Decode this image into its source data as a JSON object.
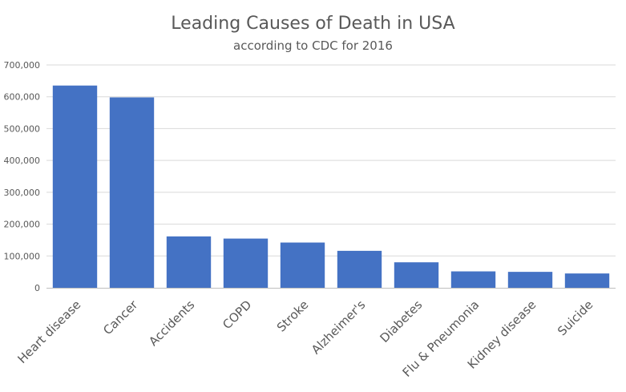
{
  "chart_data": {
    "type": "bar",
    "title": "Leading Causes of Death in USA",
    "subtitle": "according to CDC for 2016",
    "categories": [
      "Heart disease",
      "Cancer",
      "Accidents",
      "COPD",
      "Stroke",
      "Alzheimer's",
      "Diabetes",
      "Flu & Pneumonia",
      "Kidney disease",
      "Suicide"
    ],
    "values": [
      635260,
      598038,
      161374,
      154596,
      142142,
      116103,
      80058,
      51537,
      50046,
      44965
    ],
    "ylim": [
      0,
      700000
    ],
    "yticks": [
      0,
      100000,
      200000,
      300000,
      400000,
      500000,
      600000,
      700000
    ],
    "ytick_labels": [
      "0",
      "100,000",
      "200,000",
      "300,000",
      "400,000",
      "500,000",
      "600,000",
      "700,000"
    ],
    "grid": true,
    "bar_color": "#4472c4",
    "legend": "none"
  }
}
